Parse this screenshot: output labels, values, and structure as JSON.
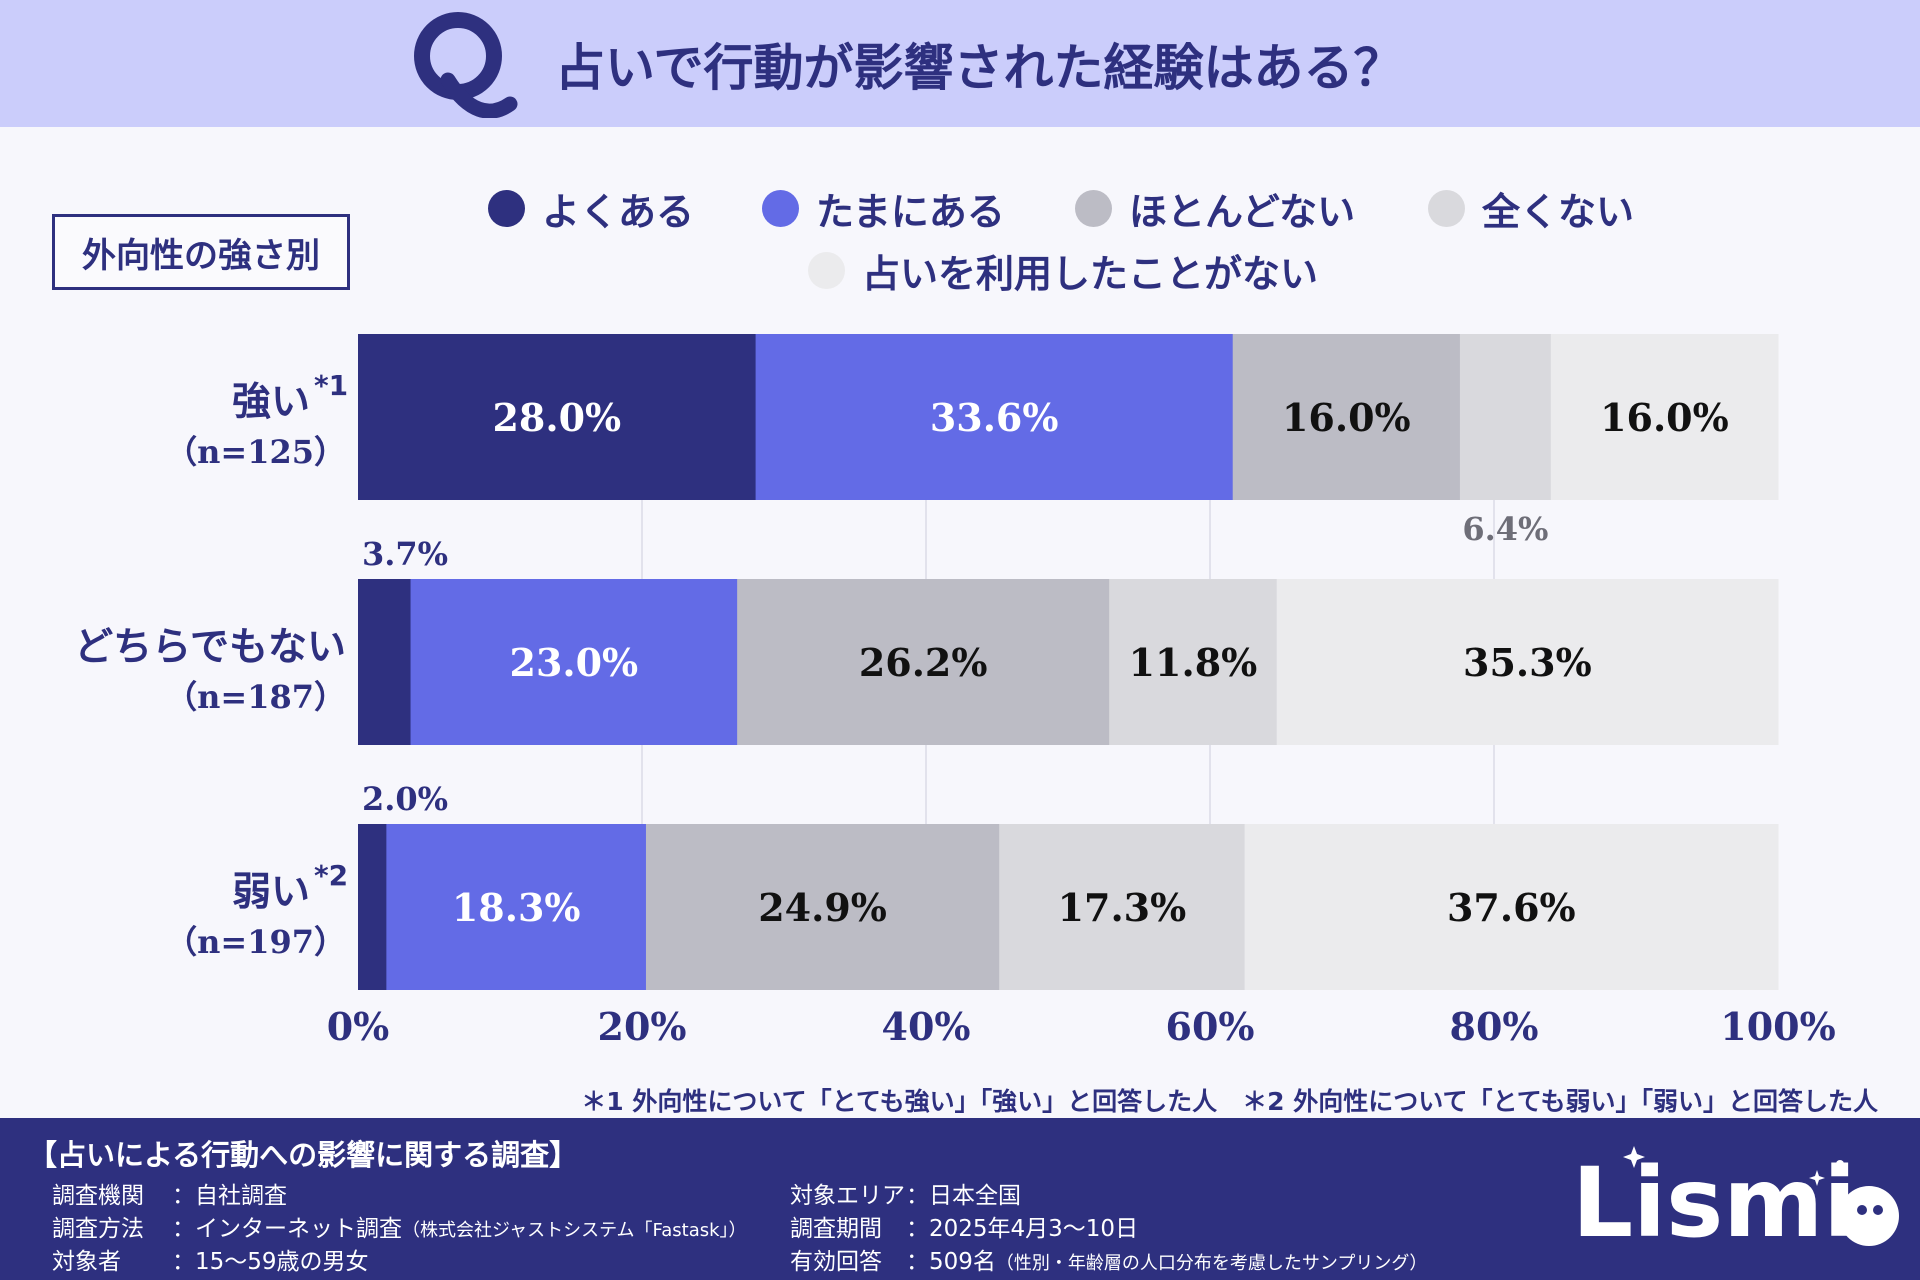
{
  "header": {
    "q_mark": "Q",
    "title": "占いで行動が影響された経験はある？"
  },
  "subtitle": "外向性の強さ別",
  "legend": [
    {
      "label": "よくある",
      "color": "#2e307f"
    },
    {
      "label": "たまにある",
      "color": "#636be6"
    },
    {
      "label": "ほとんどない",
      "color": "#bcbcc5"
    },
    {
      "label": "全くない",
      "color": "#d9d9dd"
    },
    {
      "label": "占いを利用したことがない",
      "color": "#ebebed"
    }
  ],
  "chart_data": {
    "type": "bar",
    "orientation": "horizontal",
    "stacked": true,
    "categories": [
      {
        "name": "強い",
        "mark": "*1",
        "n": "（n=125）"
      },
      {
        "name": "どちらでもない",
        "mark": "",
        "n": "（n=187）"
      },
      {
        "name": "弱い",
        "mark": "*2",
        "n": "（n=197）"
      }
    ],
    "series": [
      {
        "name": "よくある",
        "color": "#2e307f",
        "values": [
          28.0,
          3.7,
          2.0
        ],
        "labels": [
          "28.0%",
          "3.7%",
          "2.0%"
        ]
      },
      {
        "name": "たまにある",
        "color": "#636be6",
        "values": [
          33.6,
          23.0,
          18.3
        ],
        "labels": [
          "33.6%",
          "23.0%",
          "18.3%"
        ]
      },
      {
        "name": "ほとんどない",
        "color": "#bcbcc5",
        "values": [
          16.0,
          26.2,
          24.9
        ],
        "labels": [
          "16.0%",
          "26.2%",
          "24.9%"
        ]
      },
      {
        "name": "全くない",
        "color": "#d9d9dd",
        "values": [
          6.4,
          11.8,
          17.3
        ],
        "labels": [
          "6.4%",
          "11.8%",
          "17.3%"
        ]
      },
      {
        "name": "占いを利用したことがない",
        "color": "#ebebed",
        "values": [
          16.0,
          35.3,
          37.6
        ],
        "labels": [
          "16.0%",
          "35.3%",
          "37.6%"
        ]
      }
    ],
    "xlim": [
      0,
      100
    ],
    "xticks": [
      "0%",
      "20%",
      "40%",
      "60%",
      "80%",
      "100%"
    ],
    "grid": true
  },
  "footnote": "＊1 外向性について「とても強い」「強い」と回答した人　＊2 外向性について「とても弱い」「弱い」と回答した人",
  "footer": {
    "survey_title": "【占いによる行動への影響に関する調査】",
    "left": [
      {
        "label": "調査機関",
        "value": "自社調査",
        "note": ""
      },
      {
        "label": "調査方法",
        "value": "インターネット調査",
        "note": "（株式会社ジャストシステム「Fastask」）"
      },
      {
        "label": "対象者",
        "value": "15〜59歳の男女",
        "note": ""
      }
    ],
    "right": [
      {
        "label": "対象エリア",
        "value": "日本全国",
        "note": ""
      },
      {
        "label": "調査期間",
        "value": "2025年4月3〜10日",
        "note": ""
      },
      {
        "label": "有効回答",
        "value": "509名",
        "note": "（性別・年齢層の人口分布を考慮したサンプリング）"
      }
    ],
    "logo": "Lismi"
  }
}
